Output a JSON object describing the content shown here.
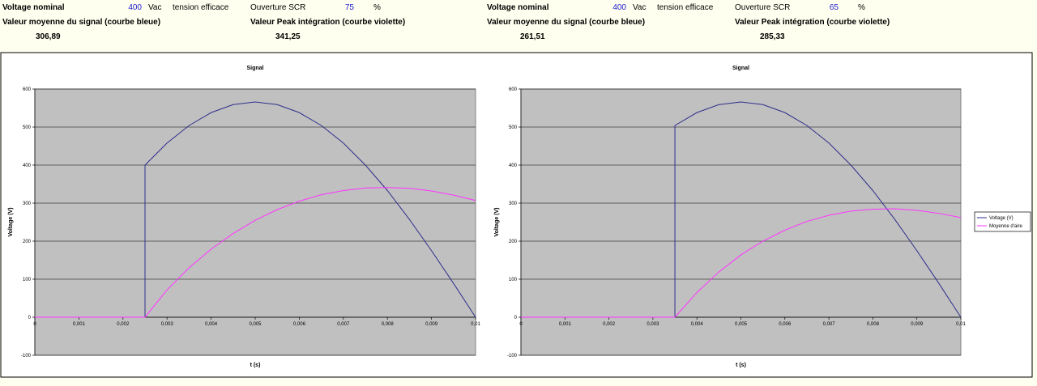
{
  "header": [
    {
      "nominal_label": "Voltage nominal",
      "nominal_value": 400,
      "unit": "Vac",
      "unit_note": "tension efficace",
      "scr_label": "Ouverture SCR",
      "scr_value": 75,
      "scr_unit": "%",
      "mean_label": "Valeur moyenne du signal (courbe bleue)",
      "peak_label": "Valeur Peak intégration (courbe violette)",
      "mean_value": "306,89",
      "peak_value": "341,25"
    },
    {
      "nominal_label": "Voltage nominal",
      "nominal_value": 400,
      "unit": "Vac",
      "unit_note": "tension efficace",
      "scr_label": "Ouverture SCR",
      "scr_value": 65,
      "scr_unit": "%",
      "mean_label": "Valeur moyenne du signal (courbe bleue)",
      "peak_label": "Valeur Peak intégration (courbe violette)",
      "mean_value": "261,51",
      "peak_value": "285,33"
    }
  ],
  "chart_data": [
    {
      "type": "line",
      "title": "Signal",
      "x_label": "t (s)",
      "y_label": "Voltage (V)",
      "x": [
        0,
        0.0005,
        0.001,
        0.0015,
        0.002,
        0.0025,
        0.0025,
        0.003,
        0.0035,
        0.004,
        0.0045,
        0.005,
        0.0055,
        0.006,
        0.0065,
        0.007,
        0.0075,
        0.008,
        0.0085,
        0.009,
        0.0095,
        0.01
      ],
      "series": [
        {
          "color": "#2e2e8c",
          "values": [
            0,
            0,
            0,
            0,
            0,
            0,
            400,
            458,
            504,
            538,
            559,
            566,
            559,
            538,
            504,
            458,
            400,
            333,
            257,
            175,
            89,
            0
          ]
        },
        {
          "color": "#ff33ff",
          "values": [
            0,
            0,
            0,
            0,
            0,
            0,
            0,
            72,
            130,
            179,
            220,
            255,
            283,
            305,
            322,
            333,
            340,
            341,
            339,
            332,
            321,
            307
          ]
        }
      ],
      "xlim": [
        0,
        0.01
      ],
      "ylim": [
        -100,
        600
      ],
      "xticks": [
        0,
        {
          "value": 0.001,
          "label": "0,001"
        },
        {
          "value": 0.002,
          "label": "0,002"
        },
        {
          "value": 0.003,
          "label": "0,003"
        },
        {
          "value": 0.004,
          "label": "0,004"
        },
        {
          "value": 0.005,
          "label": "0,005"
        },
        {
          "value": 0.006,
          "label": "0,006"
        },
        {
          "value": 0.007,
          "label": "0,007"
        },
        {
          "value": 0.008,
          "label": "0,008"
        },
        {
          "value": 0.009,
          "label": "0,009"
        },
        {
          "value": 0.01,
          "label": "0,01"
        }
      ],
      "yticks": [
        -100,
        0,
        100,
        200,
        300,
        400,
        500,
        600
      ],
      "grid": true
    },
    {
      "type": "line",
      "title": "Signal",
      "x_label": "t (s)",
      "y_label": "Voltage (V)",
      "x": [
        0,
        0.0005,
        0.001,
        0.0015,
        0.002,
        0.0025,
        0.003,
        0.0035,
        0.0035,
        0.004,
        0.0045,
        0.005,
        0.0055,
        0.006,
        0.0065,
        0.007,
        0.0075,
        0.008,
        0.0085,
        0.009,
        0.0095,
        0.01
      ],
      "series": [
        {
          "name": "Voltage (V)",
          "color": "#2e2e8c",
          "values": [
            0,
            0,
            0,
            0,
            0,
            0,
            0,
            0,
            504,
            538,
            559,
            566,
            559,
            538,
            504,
            458,
            400,
            333,
            257,
            175,
            89,
            0
          ]
        },
        {
          "name": "Moyenne d'aire",
          "color": "#ff33ff",
          "values": [
            0,
            0,
            0,
            0,
            0,
            0,
            0,
            0,
            0,
            65,
            119,
            164,
            200,
            229,
            252,
            268,
            279,
            284,
            285,
            281,
            273,
            262
          ]
        }
      ],
      "xlim": [
        0,
        0.01
      ],
      "ylim": [
        -100,
        600
      ],
      "xticks": [
        0,
        {
          "value": 0.001,
          "label": "0,001"
        },
        {
          "value": 0.002,
          "label": "0,002"
        },
        {
          "value": 0.003,
          "label": "0,003"
        },
        {
          "value": 0.004,
          "label": "0,004"
        },
        {
          "value": 0.005,
          "label": "0,005"
        },
        {
          "value": 0.006,
          "label": "0,006"
        },
        {
          "value": 0.007,
          "label": "0,007"
        },
        {
          "value": 0.008,
          "label": "0,008"
        },
        {
          "value": 0.009,
          "label": "0,009"
        },
        {
          "value": 0.01,
          "label": "0,01"
        }
      ],
      "yticks": [
        -100,
        0,
        100,
        200,
        300,
        400,
        500,
        600
      ],
      "grid": true,
      "legend": "right"
    }
  ]
}
